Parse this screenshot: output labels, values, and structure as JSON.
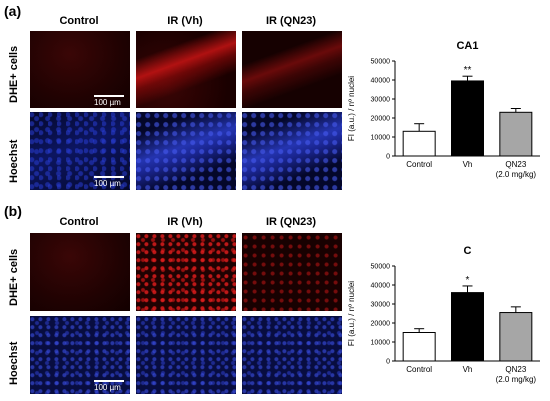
{
  "panels": [
    {
      "label": "(a)",
      "columns": [
        "Control",
        "IR (Vh)",
        "IR (QN23)"
      ],
      "rows": [
        "DHE+ cells",
        "Hoechst"
      ],
      "scale_bar": "100 µm"
    },
    {
      "label": "(b)",
      "columns": [
        "Control",
        "IR (Vh)",
        "IR (QN23)"
      ],
      "rows": [
        "DHE+ cells",
        "Hoechst"
      ],
      "scale_bar": "100 µm"
    }
  ],
  "colors": {
    "control": "#ffffff",
    "vh": "#000000",
    "qn23": "#a6a6a6",
    "dhe": "#c81414",
    "hoechst": "#2434b0"
  },
  "chart_data": [
    {
      "type": "bar",
      "title": "CA1",
      "ylabel": "FI (a.u.) / nº nuclei",
      "categories": [
        "Control",
        "Vh",
        "QN23"
      ],
      "category_sublabels": [
        "",
        "",
        "(2.0 mg/kg)"
      ],
      "values": [
        13000,
        39500,
        23000
      ],
      "errors": [
        4000,
        2500,
        2000
      ],
      "significance": [
        "",
        "**",
        ""
      ],
      "ylim": [
        0,
        50000
      ],
      "yticks": [
        0,
        10000,
        20000,
        30000,
        40000,
        50000
      ],
      "grid": false
    },
    {
      "type": "bar",
      "title": "C",
      "ylabel": "FI (a.u.) / nº nuclei",
      "categories": [
        "Control",
        "Vh",
        "QN23"
      ],
      "category_sublabels": [
        "",
        "",
        "(2.0 mg/kg)"
      ],
      "values": [
        15000,
        36000,
        25500
      ],
      "errors": [
        2000,
        3500,
        3000
      ],
      "significance": [
        "",
        "*",
        ""
      ],
      "ylim": [
        0,
        50000
      ],
      "yticks": [
        0,
        10000,
        20000,
        30000,
        40000,
        50000
      ],
      "grid": false
    }
  ]
}
